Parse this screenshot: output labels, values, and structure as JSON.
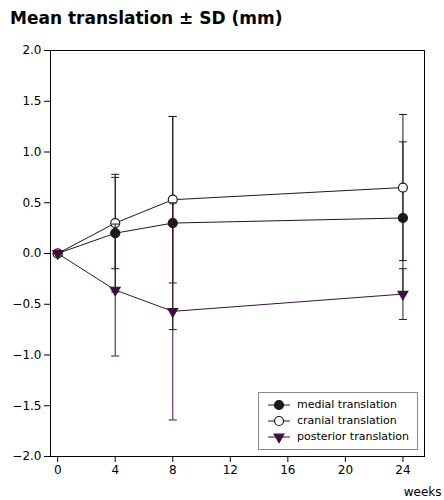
{
  "chart_data": {
    "type": "line",
    "title": "Mean translation ± SD (mm)",
    "xlabel": "weeks",
    "x": [
      0,
      4,
      8,
      24
    ],
    "xlim": [
      -0.5,
      25.5
    ],
    "ylim": [
      -2.0,
      2.0
    ],
    "xticks": [
      0,
      4,
      8,
      12,
      16,
      20,
      24
    ],
    "yticks": [
      {
        "value": -2.0,
        "label": "−2.0"
      },
      {
        "value": -1.5,
        "label": "−1.5"
      },
      {
        "value": -1.0,
        "label": "−1.0"
      },
      {
        "value": -0.5,
        "label": "−0.5"
      },
      {
        "value": 0.0,
        "label": "0.0"
      },
      {
        "value": 0.5,
        "label": "0.5"
      },
      {
        "value": 1.0,
        "label": "1.0"
      },
      {
        "value": 1.5,
        "label": "1.5"
      },
      {
        "value": 2.0,
        "label": "2.0"
      }
    ],
    "grid": false,
    "legend": "lower right",
    "series": [
      {
        "name": "medial translation",
        "values": [
          0.0,
          0.2,
          0.3,
          0.35
        ],
        "yerr": [
          0.0,
          0.58,
          1.05,
          0.75
        ],
        "color": "#1a1a1a",
        "marker": "circle"
      },
      {
        "name": "cranial translation",
        "values": [
          0.0,
          0.3,
          0.53,
          0.65
        ],
        "yerr": [
          0.0,
          0.45,
          0.82,
          0.72
        ],
        "color": "#1a1a1a",
        "marker": "open-circle"
      },
      {
        "name": "posterior translation",
        "values": [
          0.0,
          -0.36,
          -0.57,
          -0.4
        ],
        "yerr": [
          0.0,
          0.65,
          1.07,
          0.25
        ],
        "color": "#3d0f3d",
        "marker": "triangle-down"
      }
    ]
  }
}
